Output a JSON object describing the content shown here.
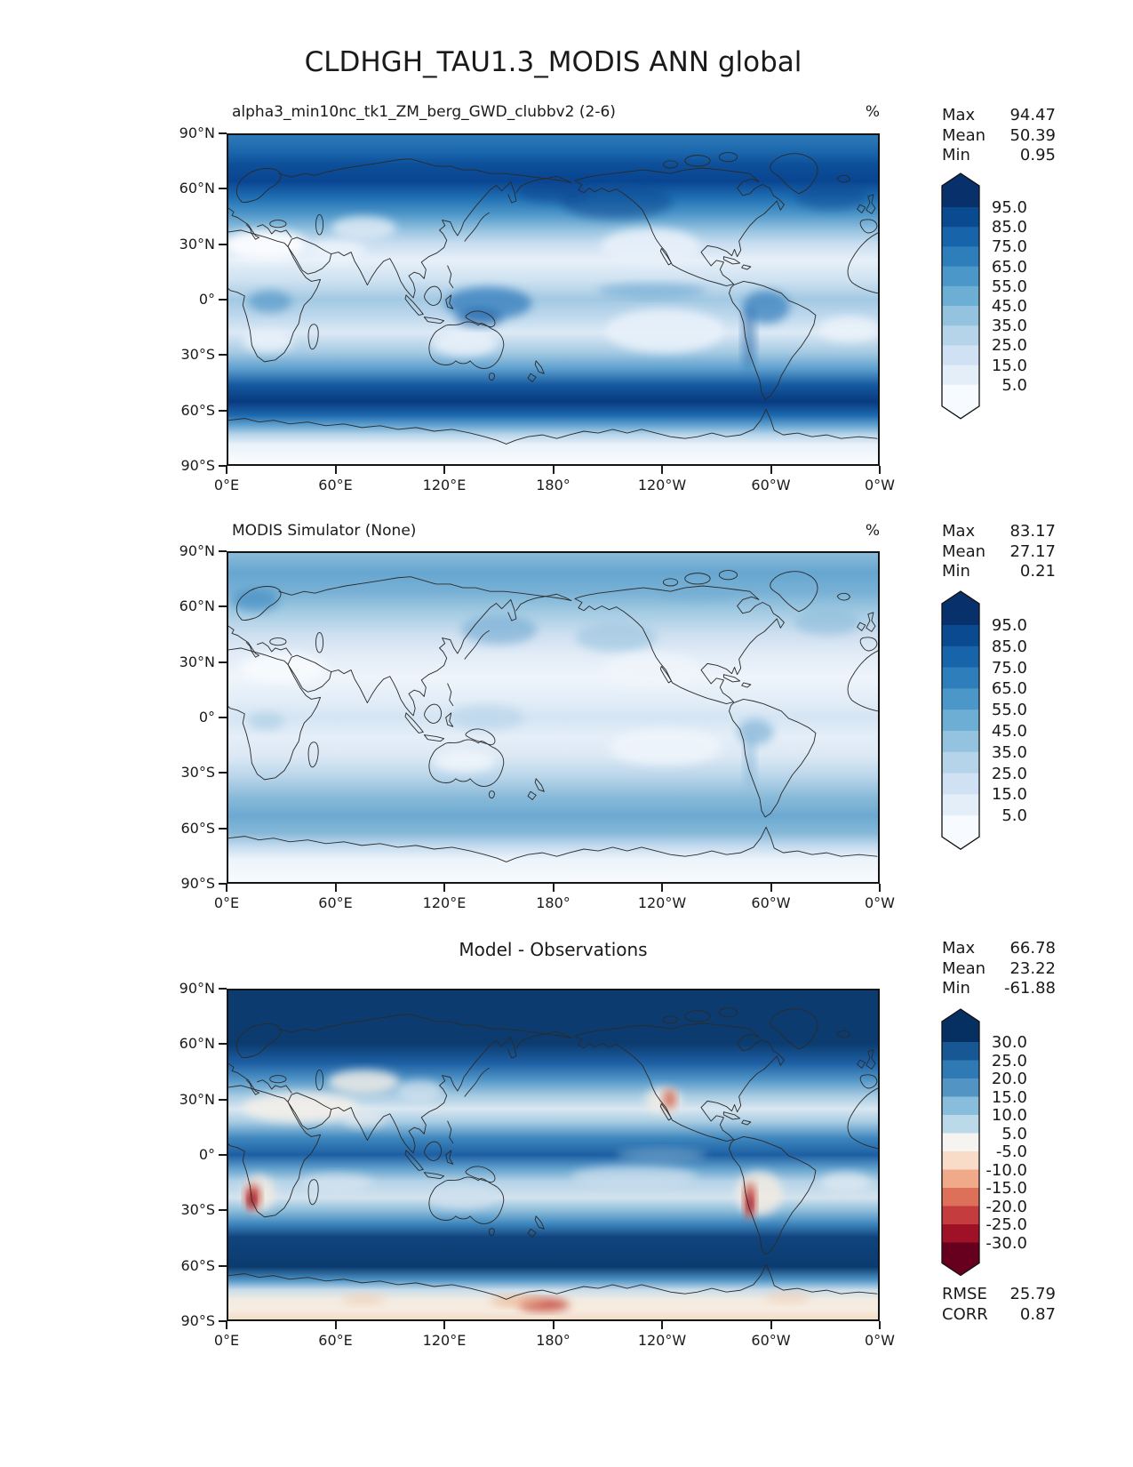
{
  "title": "CLDHGH_TAU1.3_MODIS ANN global",
  "axes": {
    "lat_ticks": [
      "90°N",
      "60°N",
      "30°N",
      "0°",
      "30°S",
      "60°S",
      "90°S"
    ],
    "lon_ticks": [
      "0°E",
      "60°E",
      "120°E",
      "180°",
      "120°W",
      "60°W",
      "0°W"
    ]
  },
  "panels": [
    {
      "title": "alpha3_min10nc_tk1_ZM_berg_GWD_clubbv2 (2-6)",
      "units": "%",
      "stats": [
        {
          "label": "Max",
          "value": "94.47"
        },
        {
          "label": "Mean",
          "value": "50.39"
        },
        {
          "label": "Min",
          "value": "0.95"
        }
      ],
      "colorbar": {
        "tick_labels": [
          "95.0",
          "85.0",
          "75.0",
          "65.0",
          "55.0",
          "45.0",
          "35.0",
          "25.0",
          "15.0",
          "5.0"
        ],
        "colors_top_to_bottom": [
          "#08306b",
          "#0a4a90",
          "#1864aa",
          "#2f7ebc",
          "#4b97c9",
          "#6daed5",
          "#93c3df",
          "#b5d4e9",
          "#cfe1f2",
          "#e3eef9",
          "#f7fbff"
        ]
      }
    },
    {
      "title": "MODIS Simulator (None)",
      "units": "%",
      "stats": [
        {
          "label": "Max",
          "value": "83.17"
        },
        {
          "label": "Mean",
          "value": "27.17"
        },
        {
          "label": "Min",
          "value": "0.21"
        }
      ],
      "colorbar": {
        "tick_labels": [
          "95.0",
          "85.0",
          "75.0",
          "65.0",
          "55.0",
          "45.0",
          "35.0",
          "25.0",
          "15.0",
          "5.0"
        ],
        "colors_top_to_bottom": [
          "#08306b",
          "#0a4a90",
          "#1864aa",
          "#2f7ebc",
          "#4b97c9",
          "#6daed5",
          "#93c3df",
          "#b5d4e9",
          "#cfe1f2",
          "#e3eef9",
          "#f7fbff"
        ]
      }
    },
    {
      "title": "Model - Observations",
      "units": "",
      "stats": [
        {
          "label": "Max",
          "value": "66.78"
        },
        {
          "label": "Mean",
          "value": "23.22"
        },
        {
          "label": "Min",
          "value": "-61.88"
        }
      ],
      "colorbar": {
        "tick_labels": [
          "30.0",
          "25.0",
          "20.0",
          "15.0",
          "10.0",
          "5.0",
          "-5.0",
          "-10.0",
          "-15.0",
          "-20.0",
          "-25.0",
          "-30.0"
        ],
        "colors_top_to_bottom": [
          "#053061",
          "#175793",
          "#2f79b5",
          "#5295c4",
          "#88bedc",
          "#bcd9ea",
          "#f6f4f0",
          "#f9dcc8",
          "#f1aa89",
          "#dd7059",
          "#c43c3d",
          "#9e1127",
          "#67001f"
        ]
      },
      "extra_stats": [
        {
          "label": "RMSE",
          "value": "25.79"
        },
        {
          "label": "CORR",
          "value": "0.87"
        }
      ]
    }
  ],
  "chart_data": {
    "type": "heatmap",
    "subtype": "global filled-contour latitude-longitude maps (equirectangular, longitude 0°E eastward to 0°W)",
    "suptitle": "CLDHGH_TAU1.3_MODIS ANN global",
    "units": "%",
    "lat_tick_labels": [
      "90°N",
      "60°N",
      "30°N",
      "0°",
      "30°S",
      "60°S",
      "90°S"
    ],
    "lon_tick_labels": [
      "0°E",
      "60°E",
      "120°E",
      "180°",
      "120°W",
      "60°W",
      "0°W"
    ],
    "panels": [
      {
        "title": "alpha3_min10nc_tk1_ZM_berg_GWD_clubbv2 (2-6)",
        "units": "%",
        "max": 94.47,
        "mean": 50.39,
        "min": 0.95,
        "contour_levels": [
          5,
          15,
          25,
          35,
          45,
          55,
          65,
          75,
          85,
          95
        ],
        "colormap": "Blues",
        "extend": "both",
        "pattern": "high cloud fraction: dark-blue maxima along 50-70N and 45-65S storm tracks and tropical warm pool; near-white minima over subtropics (Sahara, E Pacific, SE Pacific, Australia) and over Antarctica"
      },
      {
        "title": "MODIS Simulator (None)",
        "units": "%",
        "max": 83.17,
        "mean": 27.17,
        "min": 0.21,
        "contour_levels": [
          5,
          15,
          25,
          35,
          45,
          55,
          65,
          75,
          85,
          95
        ],
        "colormap": "Blues",
        "extend": "both",
        "pattern": "same field from MODIS observations: overall much lighter; moderate blues at high northern latitudes and 45-60S; very light subtropics and south polar cap"
      },
      {
        "title": "Model - Observations",
        "max": 66.78,
        "mean": 23.22,
        "min": -61.88,
        "rmse": 25.79,
        "corr": 0.87,
        "contour_levels": [
          -30,
          -25,
          -20,
          -15,
          -10,
          -5,
          5,
          10,
          15,
          20,
          25,
          30
        ],
        "colormap": "RdBu",
        "extend": "both",
        "pattern": "model minus observations: strong positive (dark blue) bias nearly everywhere, especially storm tracks and tropics; negative (red) spots off Namibia, along Peru/Chile coast, Baja California and parts of coastal Antarctica"
      }
    ]
  }
}
